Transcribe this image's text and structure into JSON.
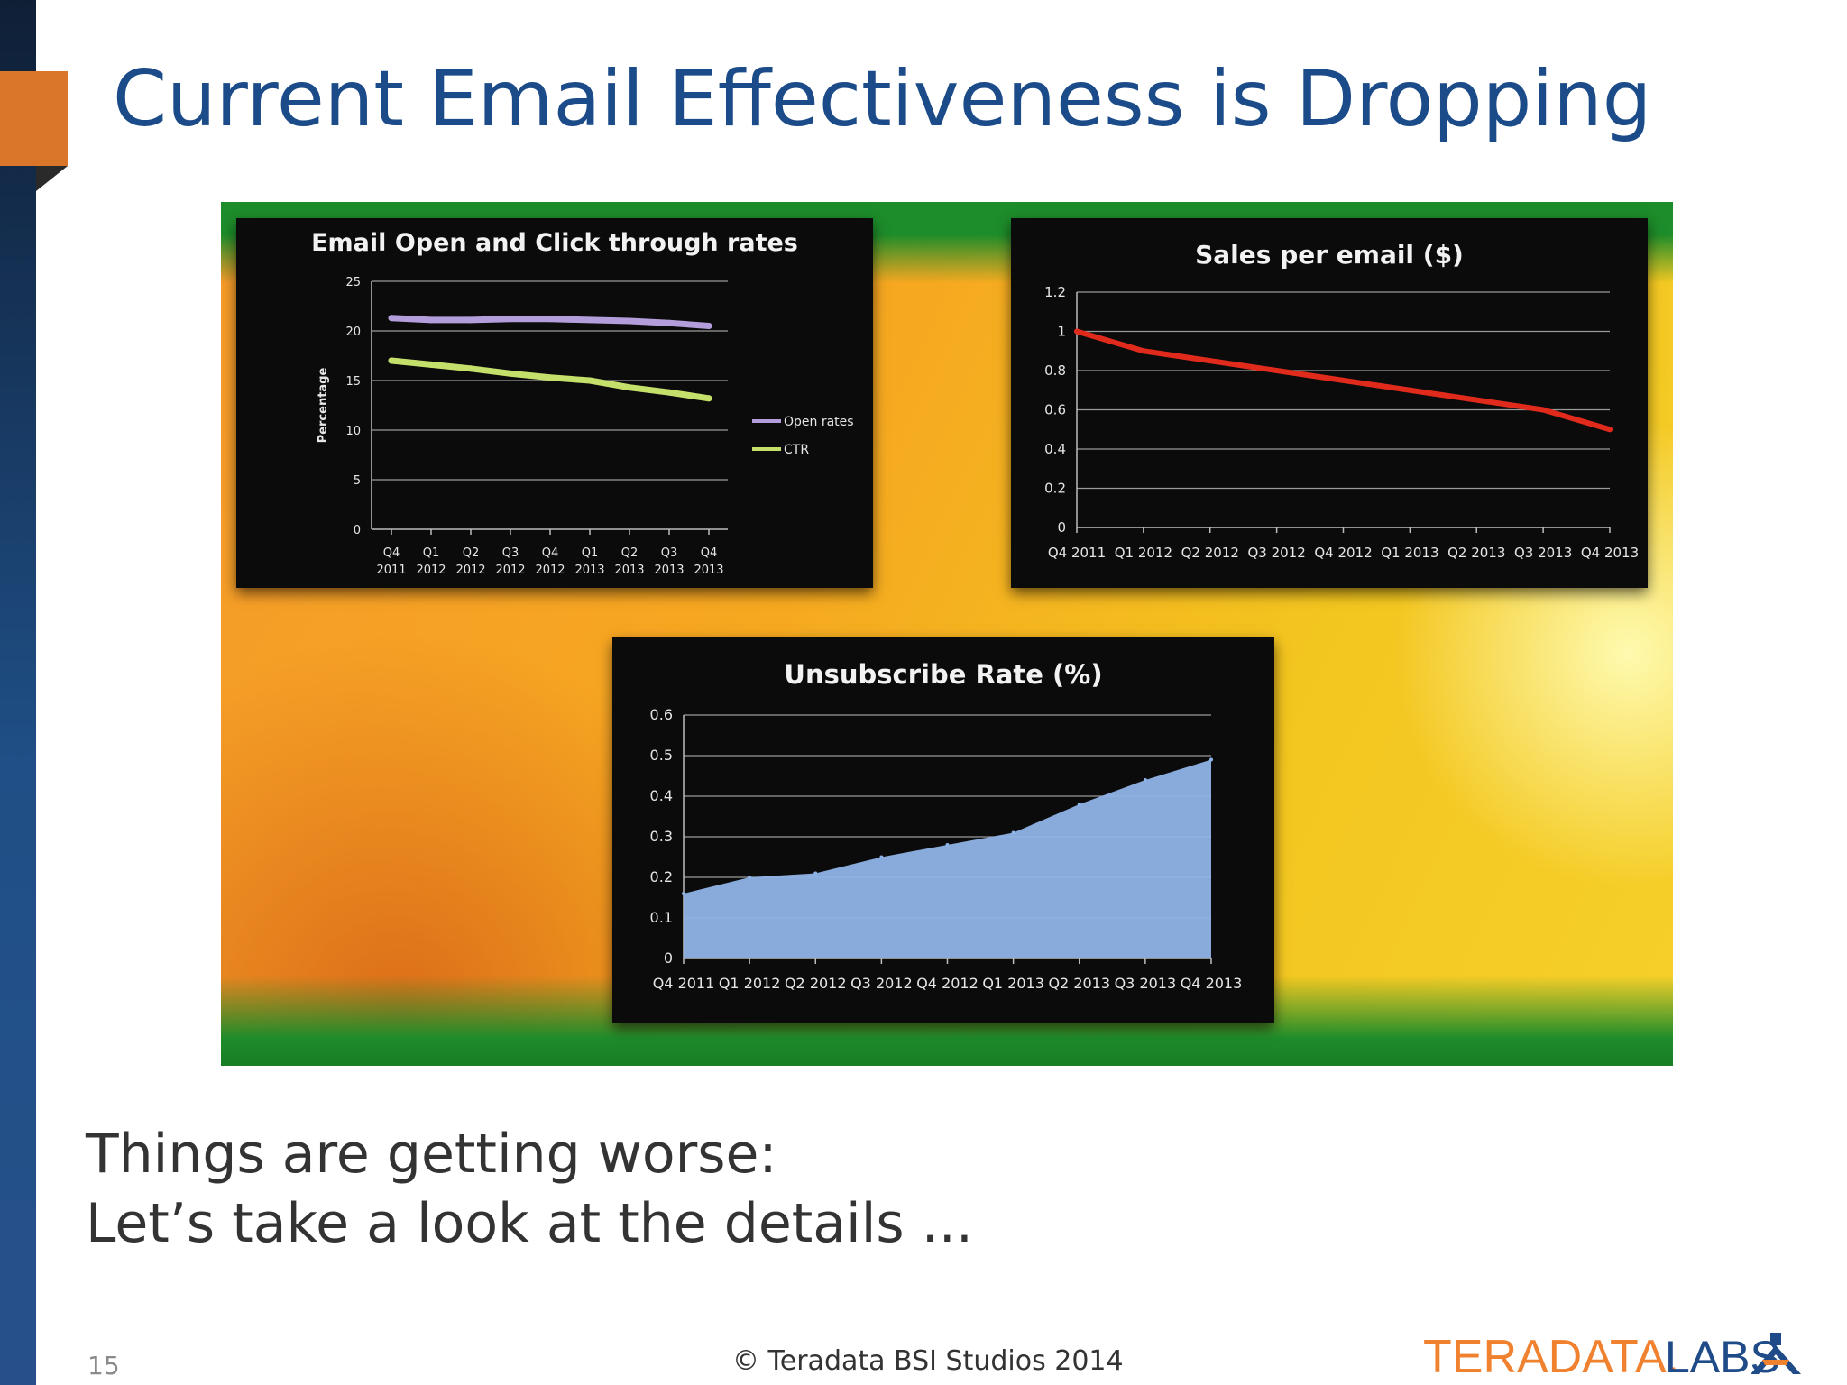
{
  "slide": {
    "title": "Current Email Effectiveness is Dropping",
    "bullets": [
      "Things are getting worse:",
      "Let’s take a look at the details ..."
    ],
    "page_number": "15",
    "copyright": "© Teradata BSI Studios 2014",
    "logo_text": "TERADATA. LABS",
    "colors": {
      "title": "#1b4b88",
      "accent": "#d9762a",
      "left_bar": "#1f4f86"
    }
  },
  "chart_data": [
    {
      "type": "line",
      "title": "Email Open and Click through rates",
      "ylabel": "Percentage",
      "xlabel": "",
      "categories": [
        "Q4 2011",
        "Q1 2012",
        "Q2 2012",
        "Q3 2012",
        "Q4 2012",
        "Q1 2013",
        "Q2 2013",
        "Q3 2013",
        "Q4 2013"
      ],
      "series": [
        {
          "name": "Open rates",
          "color": "#b39ddb",
          "values": [
            21.3,
            21.1,
            21.1,
            21.2,
            21.2,
            21.1,
            21.0,
            20.8,
            20.5
          ]
        },
        {
          "name": "CTR",
          "color": "#c5e06a",
          "values": [
            17.0,
            16.6,
            16.2,
            15.7,
            15.3,
            15.0,
            14.3,
            13.8,
            13.2
          ]
        }
      ],
      "ylim": [
        0,
        25
      ],
      "yticks": [
        0,
        5,
        10,
        15,
        20,
        25
      ],
      "grid": true,
      "legend": "right"
    },
    {
      "type": "line",
      "title": "Sales per email ($)",
      "xlabel": "",
      "ylabel": "",
      "categories": [
        "Q4 2011",
        "Q1 2012",
        "Q2 2012",
        "Q3 2012",
        "Q4 2012",
        "Q1 2013",
        "Q2 2013",
        "Q3 2013",
        "Q4 2013"
      ],
      "series": [
        {
          "color": "#e02a1b",
          "values": [
            1.0,
            0.9,
            0.85,
            0.8,
            0.75,
            0.7,
            0.65,
            0.6,
            0.5
          ]
        }
      ],
      "ylim": [
        0,
        1.2
      ],
      "yticks": [
        "0",
        "0.2",
        "0.4",
        "0.6",
        "0.8",
        "1",
        "1.2"
      ],
      "grid": true
    },
    {
      "type": "area",
      "title": "Unsubscribe Rate (%)",
      "xlabel": "",
      "ylabel": "",
      "categories": [
        "Q4 2011",
        "Q1 2012",
        "Q2 2012",
        "Q3 2012",
        "Q4 2012",
        "Q1 2013",
        "Q2 2013",
        "Q3 2013",
        "Q4 2013"
      ],
      "series": [
        {
          "color": "#8fb4e8",
          "values": [
            0.16,
            0.2,
            0.21,
            0.25,
            0.28,
            0.31,
            0.38,
            0.44,
            0.49
          ]
        }
      ],
      "ylim": [
        0,
        0.6
      ],
      "yticks": [
        "0",
        "0.1",
        "0.2",
        "0.3",
        "0.4",
        "0.5",
        "0.6"
      ],
      "grid": true
    }
  ]
}
